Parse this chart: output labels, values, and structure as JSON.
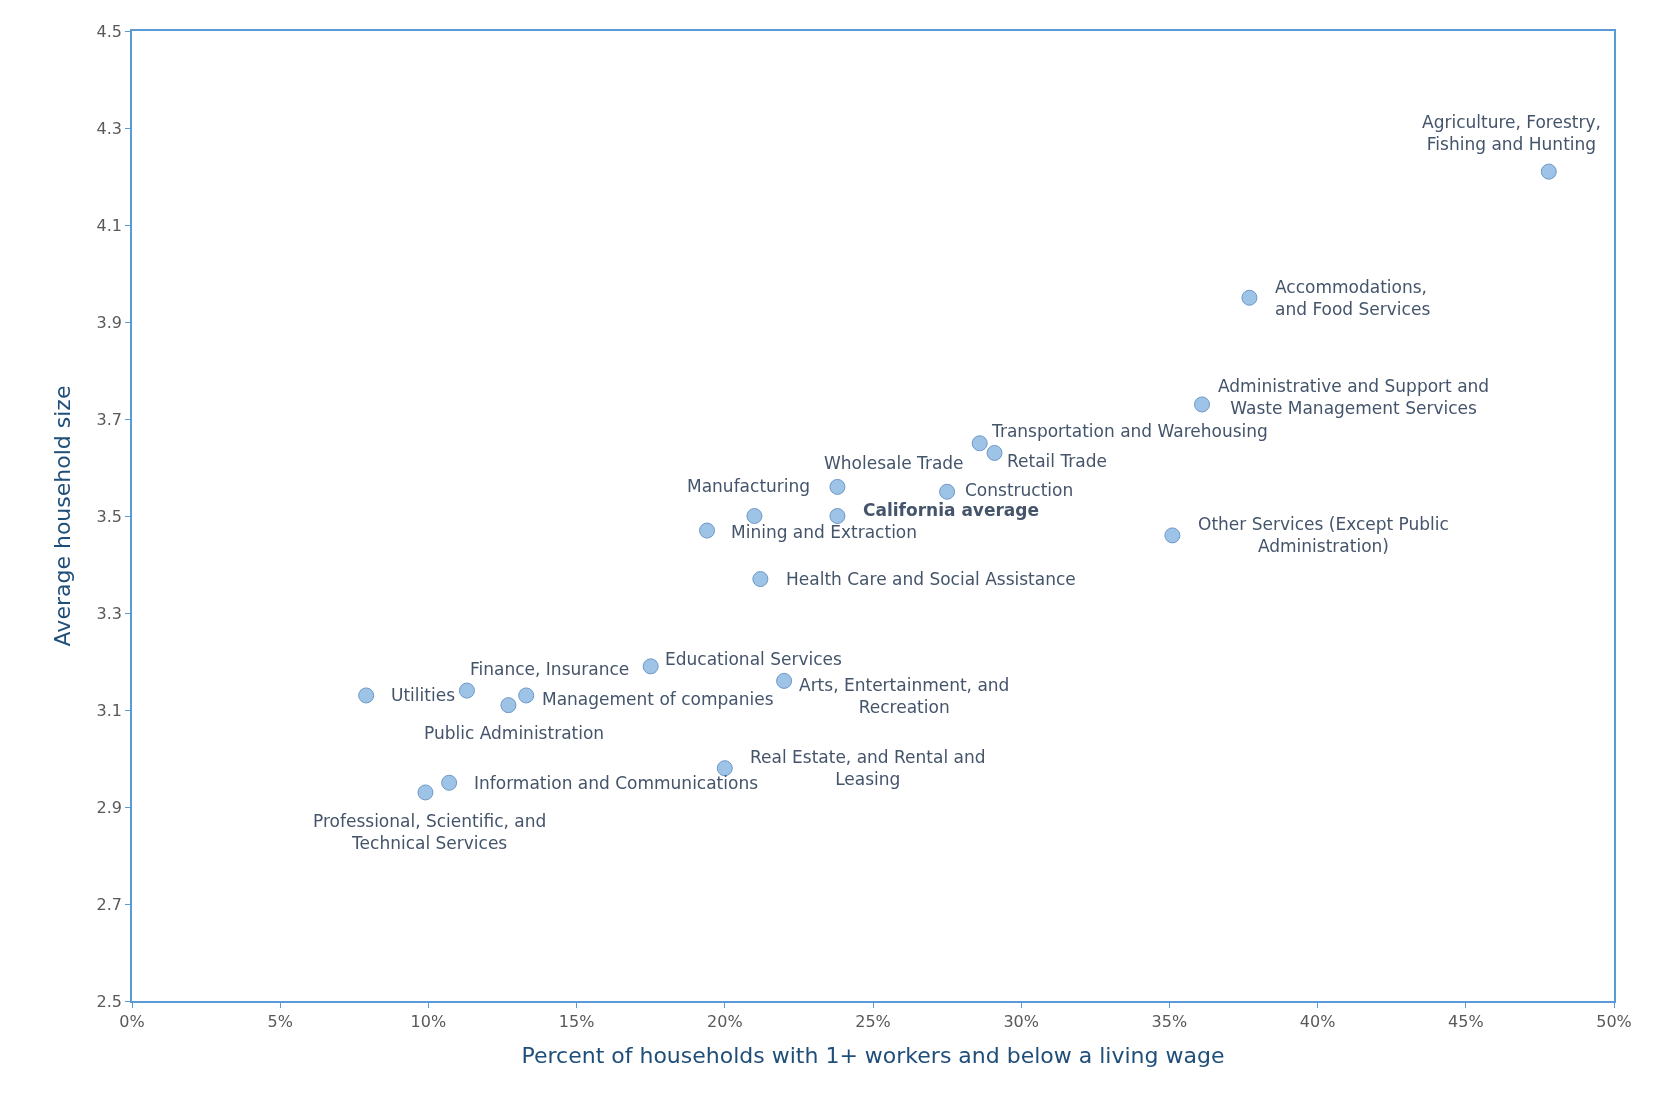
{
  "chart_data": {
    "type": "scatter",
    "xlabel": "Percent of households with 1+ workers and below a living wage",
    "ylabel": "Average household size",
    "xlim": [
      0,
      0.5
    ],
    "xticks": [
      {
        "value": 0,
        "label": "0%"
      },
      {
        "value": 0.05,
        "label": "5%"
      },
      {
        "value": 0.1,
        "label": "10%"
      },
      {
        "value": 0.15,
        "label": "15%"
      },
      {
        "value": 0.2,
        "label": "20%"
      },
      {
        "value": 0.25,
        "label": "25%"
      },
      {
        "value": 0.3,
        "label": "30%"
      },
      {
        "value": 0.35,
        "label": "35%"
      },
      {
        "value": 0.4,
        "label": "40%"
      },
      {
        "value": 0.45,
        "label": "45%"
      },
      {
        "value": 0.5,
        "label": "50%"
      }
    ],
    "ylim": [
      2.5,
      4.5
    ],
    "yticks": [
      2.5,
      2.7,
      2.9,
      3.1,
      3.3,
      3.5,
      3.7,
      3.9,
      4.1,
      4.3,
      4.5
    ],
    "grid": false,
    "legend": false,
    "marker": "circle",
    "series": [
      {
        "color": "#9dc3e6",
        "x": [
          0.478,
          0.377,
          0.361,
          0.286,
          0.291,
          0.238,
          0.275,
          0.21,
          0.194,
          0.351,
          0.212,
          0.175,
          0.22,
          0.113,
          0.133,
          0.079,
          0.127,
          0.2,
          0.107,
          0.099
        ],
        "values": [
          4.21,
          3.95,
          3.73,
          3.65,
          3.63,
          3.56,
          3.55,
          3.5,
          3.47,
          3.46,
          3.37,
          3.19,
          3.16,
          3.14,
          3.13,
          3.13,
          3.11,
          2.98,
          2.95,
          2.93
        ]
      },
      {
        "name": "California average",
        "color": "#9dc3e6",
        "x": [
          0.238
        ],
        "values": [
          3.5
        ]
      }
    ],
    "annotations": [
      {
        "text": "Agriculture, Forestry,\nFishing and Hunting",
        "x": 0.478,
        "y": 4.21
      },
      {
        "text": "Accommodations,\nand Food Services",
        "x": 0.377,
        "y": 3.95
      },
      {
        "text": "Administrative and Support and\nWaste Management Services",
        "x": 0.361,
        "y": 3.73
      },
      {
        "text": "Transportation and Warehousing",
        "x": 0.286,
        "y": 3.65
      },
      {
        "text": "Retail Trade",
        "x": 0.291,
        "y": 3.63
      },
      {
        "text": "Wholesale Trade",
        "x": 0.238,
        "y": 3.56
      },
      {
        "text": "Construction",
        "x": 0.275,
        "y": 3.55
      },
      {
        "text": "Manufacturing",
        "x": 0.21,
        "y": 3.5
      },
      {
        "text": "Mining and Extraction",
        "x": 0.194,
        "y": 3.47
      },
      {
        "text": "Other Services (Except Public\nAdministration)",
        "x": 0.351,
        "y": 3.46
      },
      {
        "text": "Health Care and Social Assistance",
        "x": 0.212,
        "y": 3.37
      },
      {
        "text": "Educational Services",
        "x": 0.175,
        "y": 3.19
      },
      {
        "text": "Arts, Entertainment, and\nRecreation",
        "x": 0.22,
        "y": 3.16
      },
      {
        "text": "Finance, Insurance",
        "x": 0.113,
        "y": 3.14
      },
      {
        "text": "Management of companies",
        "x": 0.133,
        "y": 3.13
      },
      {
        "text": "Utilities",
        "x": 0.079,
        "y": 3.13
      },
      {
        "text": "Public Administration",
        "x": 0.127,
        "y": 3.11
      },
      {
        "text": "Real Estate, and Rental and\nLeasing",
        "x": 0.2,
        "y": 2.98
      },
      {
        "text": "Information and Communications",
        "x": 0.107,
        "y": 2.95
      },
      {
        "text": "Professional, Scientific, and\nTechnical Services",
        "x": 0.099,
        "y": 2.93
      }
    ]
  }
}
